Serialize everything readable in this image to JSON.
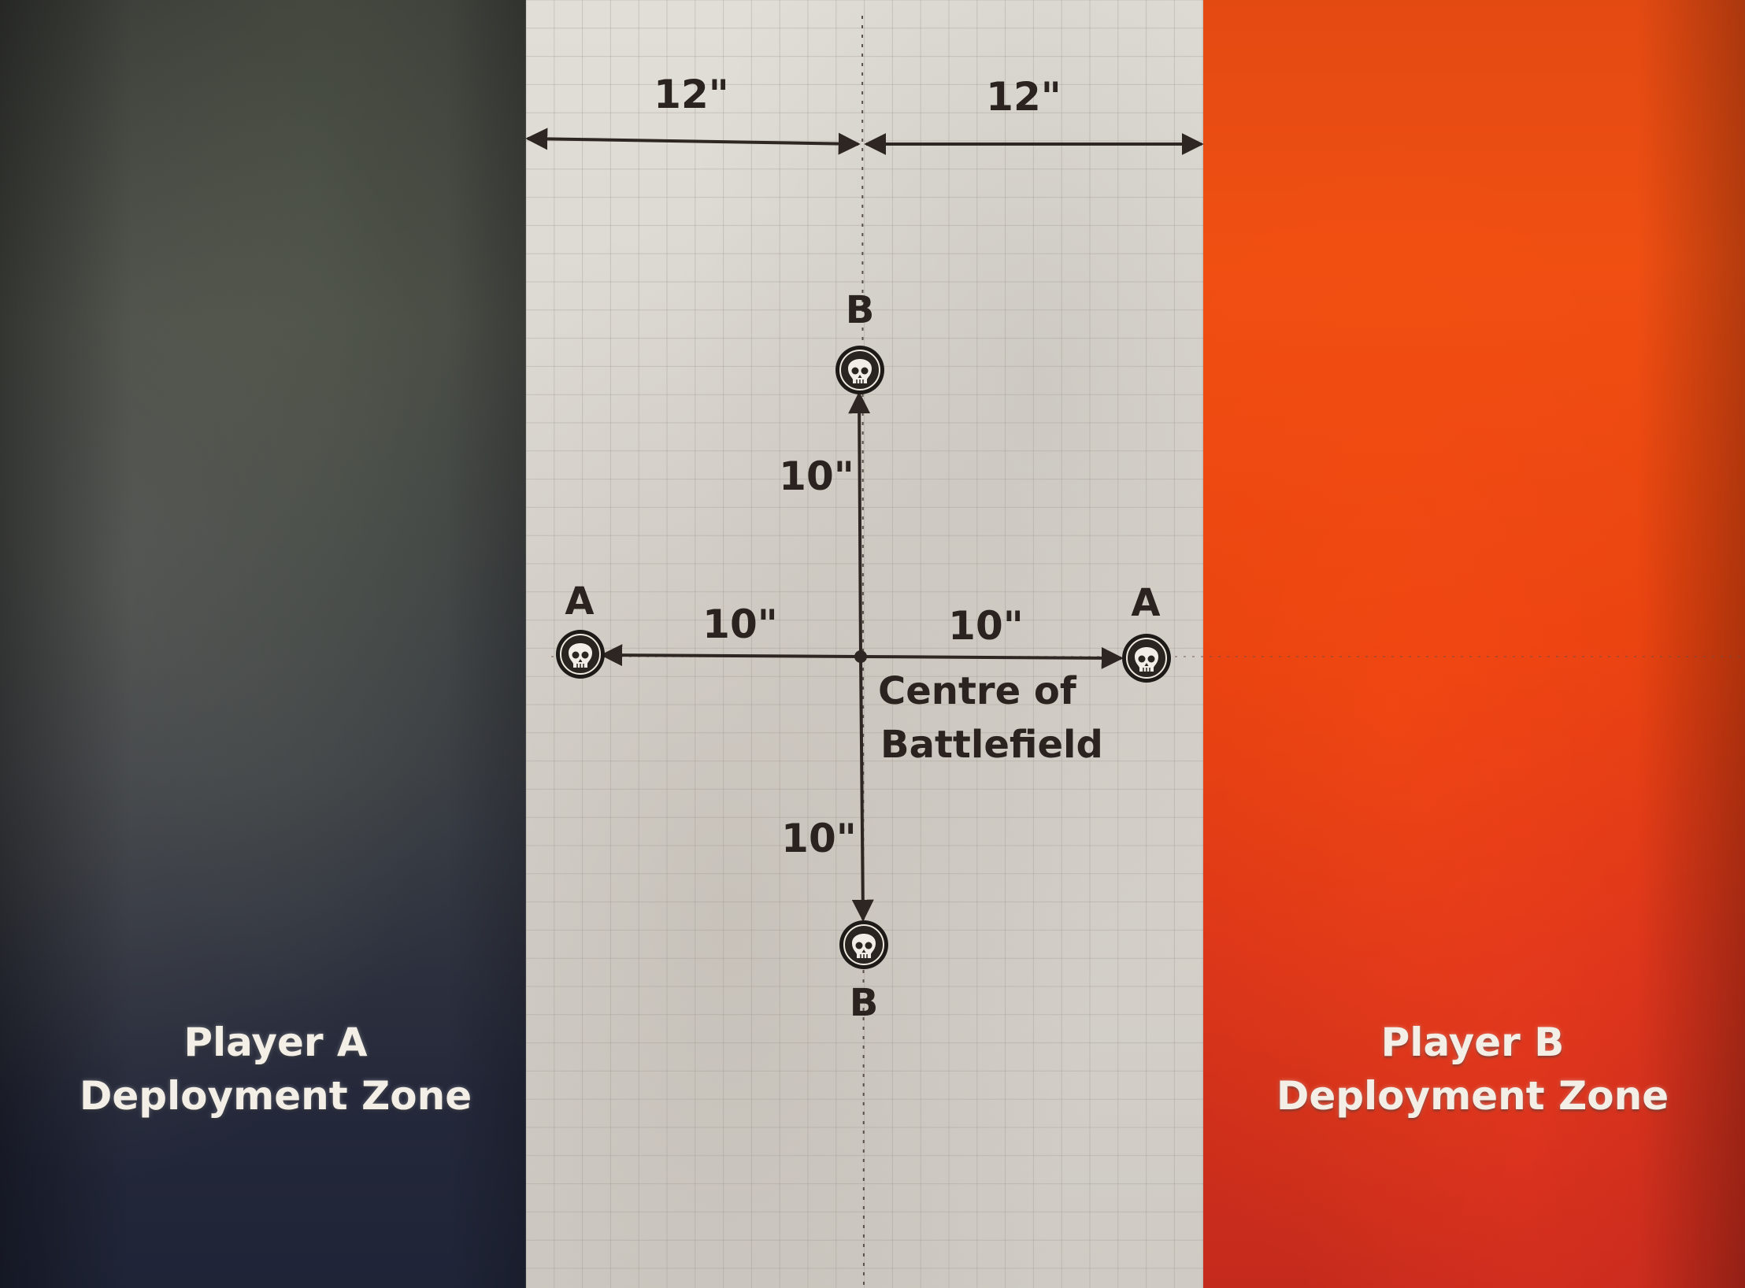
{
  "deployment_zones": {
    "player_a": {
      "line1": "Player A",
      "line2": "Deployment Zone",
      "color": "#2b2f3d"
    },
    "player_b": {
      "line1": "Player B",
      "line2": "Deployment Zone",
      "color": "#e8430f"
    },
    "no_mans_land_color": "#dcd8d1"
  },
  "measurements": {
    "top_left": "12\"",
    "top_right": "12\"",
    "up": "10\"",
    "left": "10\"",
    "right": "10\"",
    "down": "10\""
  },
  "centre_label": {
    "line1": "Centre of",
    "line2": "Battlefield"
  },
  "objectives": {
    "top": {
      "label": "B",
      "icon": "skull-icon"
    },
    "bottom": {
      "label": "B",
      "icon": "skull-icon"
    },
    "left": {
      "label": "A",
      "icon": "skull-icon"
    },
    "right": {
      "label": "A",
      "icon": "skull-icon"
    }
  }
}
